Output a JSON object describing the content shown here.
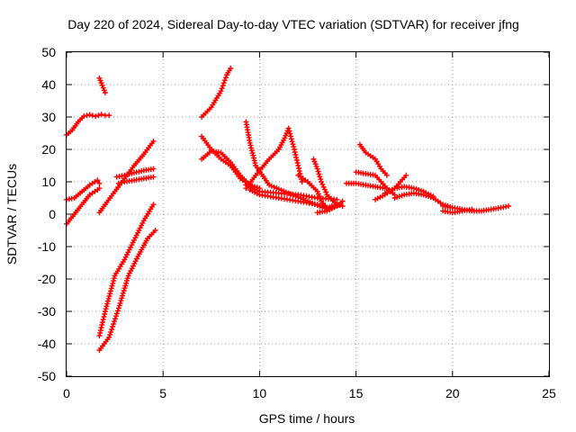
{
  "chart_data": {
    "type": "scatter",
    "title": "Day 220 of 2024, Sidereal Day-to-day VTEC variation (SDTVAR) for receiver jfng",
    "xlabel": "GPS time / hours",
    "ylabel": "SDTVAR / TECUs",
    "xlim": [
      0,
      25
    ],
    "ylim": [
      -50,
      50
    ],
    "xticks": [
      0,
      5,
      10,
      15,
      20,
      25
    ],
    "yticks": [
      -50,
      -40,
      -30,
      -20,
      -10,
      0,
      10,
      20,
      30,
      40,
      50
    ],
    "grid": true,
    "marker": "+",
    "color": "#ff0000",
    "series": [
      {
        "name": "s1",
        "x": [
          0.0,
          0.3,
          0.6,
          0.9,
          1.2,
          1.5,
          1.8,
          2.0,
          2.2
        ],
        "y": [
          24.5,
          26,
          28.5,
          30.3,
          30.7,
          30.2,
          30.8,
          30.5,
          30.5
        ]
      },
      {
        "name": "s2",
        "x": [
          1.7,
          1.8,
          1.9,
          2.0
        ],
        "y": [
          42,
          40.5,
          39,
          37.5
        ]
      },
      {
        "name": "s3",
        "x": [
          0.0,
          0.4,
          0.8,
          1.2,
          1.6,
          1.7
        ],
        "y": [
          4.5,
          5,
          7,
          9,
          10.5,
          9.5
        ]
      },
      {
        "name": "s4",
        "x": [
          0.0,
          0.4,
          0.8,
          1.2,
          1.6,
          1.7
        ],
        "y": [
          -3,
          0,
          3,
          6,
          7.5,
          8
        ]
      },
      {
        "name": "s5",
        "x": [
          1.7,
          2.0,
          2.5,
          3.0,
          3.5,
          4.0,
          4.5
        ],
        "y": [
          0.5,
          3,
          7,
          11,
          15,
          18.5,
          22.5
        ]
      },
      {
        "name": "s6",
        "x": [
          2.7,
          3.0,
          3.5,
          4.0,
          4.5
        ],
        "y": [
          9.5,
          10,
          10.5,
          11,
          11.5
        ]
      },
      {
        "name": "s7",
        "x": [
          2.6,
          3.0,
          3.5,
          4.0,
          4.5
        ],
        "y": [
          11.5,
          12,
          12.8,
          13.5,
          14
        ]
      },
      {
        "name": "s8",
        "x": [
          1.7,
          2.0,
          2.5,
          3.0,
          3.5,
          4.0,
          4.5
        ],
        "y": [
          -37.5,
          -30,
          -19,
          -14,
          -8,
          -2,
          3
        ]
      },
      {
        "name": "s9",
        "x": [
          1.7,
          2.2,
          2.7,
          3.2,
          3.7,
          4.2,
          4.6
        ],
        "y": [
          -42,
          -38,
          -29,
          -19,
          -13,
          -7.5,
          -5
        ]
      },
      {
        "name": "s10",
        "x": [
          7.0,
          7.5,
          8.0,
          8.3,
          8.5
        ],
        "y": [
          30,
          33,
          38,
          43,
          45
        ]
      },
      {
        "name": "s11",
        "x": [
          7.0,
          7.5,
          8.0,
          8.5,
          9.0,
          9.5,
          10.0
        ],
        "y": [
          24,
          20,
          17,
          15,
          11,
          9,
          8
        ]
      },
      {
        "name": "s12",
        "x": [
          7.0,
          7.5,
          8.0,
          8.5,
          9.0,
          9.5
        ],
        "y": [
          17,
          19.5,
          19,
          16,
          12,
          9
        ]
      },
      {
        "name": "s13",
        "x": [
          9.5,
          10.0,
          11.0,
          12.0,
          13.0,
          13.5
        ],
        "y": [
          7.5,
          6,
          5,
          4,
          3,
          2
        ]
      },
      {
        "name": "s14",
        "x": [
          9.3,
          10.0,
          11.0,
          12.0,
          13.0,
          14.0
        ],
        "y": [
          9,
          7,
          6.5,
          6,
          5,
          4.5
        ]
      },
      {
        "name": "s15",
        "x": [
          9.3,
          9.8,
          10.5,
          11.0,
          11.3,
          11.5,
          11.8,
          12.2
        ],
        "y": [
          8,
          12,
          17,
          20,
          23.5,
          26.5,
          20,
          10
        ]
      },
      {
        "name": "s16",
        "x": [
          9.3,
          9.5,
          9.8,
          10.5,
          11.5,
          12.5,
          13.5,
          14.2
        ],
        "y": [
          28.5,
          22,
          15,
          9,
          6.5,
          4,
          1.5,
          3
        ]
      },
      {
        "name": "s17",
        "x": [
          12.0,
          12.5,
          13.0,
          13.2,
          13.5,
          14.0
        ],
        "y": [
          12,
          10,
          7,
          4,
          2,
          3
        ]
      },
      {
        "name": "s18",
        "x": [
          12.8,
          13.0,
          13.2,
          13.5,
          14.0,
          14.3
        ],
        "y": [
          17,
          14,
          10,
          6,
          3,
          2.5
        ]
      },
      {
        "name": "s19",
        "x": [
          13.0,
          13.5,
          14.0,
          14.3
        ],
        "y": [
          0.5,
          1,
          2.5,
          4
        ]
      },
      {
        "name": "s20",
        "x": [
          15.2,
          15.5,
          16.0,
          16.3,
          16.6
        ],
        "y": [
          21.5,
          19,
          17,
          14,
          12
        ]
      },
      {
        "name": "s21",
        "x": [
          14.5,
          15.0,
          15.5,
          16.0,
          16.5
        ],
        "y": [
          9.5,
          9.5,
          9,
          8.5,
          8
        ]
      },
      {
        "name": "s22",
        "x": [
          15.0,
          15.5,
          16.0,
          16.3,
          16.6,
          17.0
        ],
        "y": [
          13,
          12.5,
          12,
          10,
          8,
          6
        ]
      },
      {
        "name": "s23",
        "x": [
          16.0,
          16.5,
          17.0,
          17.3,
          17.6
        ],
        "y": [
          4.5,
          6,
          8,
          10,
          12
        ]
      },
      {
        "name": "s24",
        "x": [
          16.5,
          17.0,
          17.5,
          18.0,
          18.5,
          19.0
        ],
        "y": [
          6.5,
          8,
          8.5,
          8,
          7,
          5.5
        ]
      },
      {
        "name": "s25",
        "x": [
          17.0,
          17.5,
          18.0,
          18.5,
          19.0,
          19.5,
          20.0
        ],
        "y": [
          5,
          6,
          6.5,
          6,
          5,
          3,
          2
        ]
      },
      {
        "name": "s26",
        "x": [
          19.5,
          20.0,
          20.5,
          21.0,
          21.5,
          22.0,
          22.5,
          22.9
        ],
        "y": [
          2.5,
          2,
          1.5,
          1,
          1,
          1.5,
          2,
          2.5
        ]
      },
      {
        "name": "s27",
        "x": [
          19.5,
          20.0,
          20.5,
          21.0
        ],
        "y": [
          1,
          0.5,
          1,
          1.5
        ]
      }
    ]
  }
}
